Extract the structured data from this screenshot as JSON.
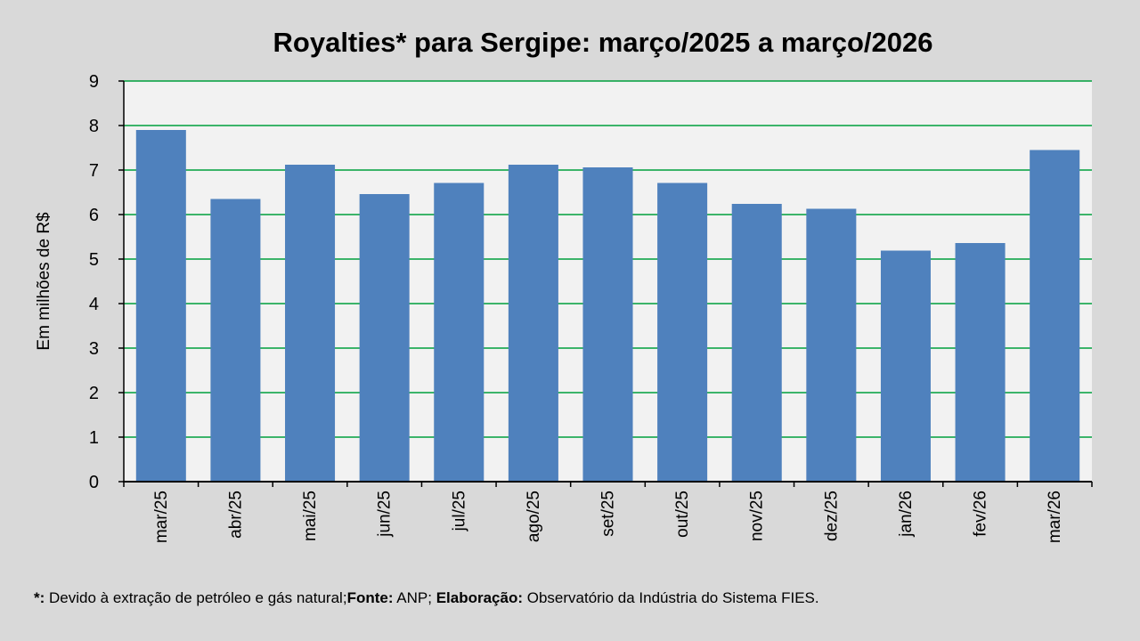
{
  "chart_data": {
    "type": "bar",
    "title": "Royalties* para Sergipe: março/2025 a março/2026",
    "ylabel": "Em milhões de R$",
    "xlabel": "",
    "categories": [
      "mar/25",
      "abr/25",
      "mai/25",
      "jun/25",
      "jul/25",
      "ago/25",
      "set/25",
      "out/25",
      "nov/25",
      "dez/25",
      "jan/26",
      "fev/26",
      "mar/26"
    ],
    "values": [
      7.9,
      6.35,
      7.12,
      6.46,
      6.71,
      7.12,
      7.06,
      6.71,
      6.24,
      6.13,
      5.19,
      5.36,
      7.45
    ],
    "ylim": [
      0,
      9
    ],
    "yticks": [
      0,
      1,
      2,
      3,
      4,
      5,
      6,
      7,
      8,
      9
    ],
    "grid": true,
    "legend": "none",
    "colors": {
      "bar": "#4f81bd",
      "grid": "#00a03c",
      "plot_background": "#f2f2f2",
      "page_background": "#d9d9d9"
    }
  },
  "footnote": {
    "asterisk_label": "*:",
    "asterisk_text": " Devido à extração de petróleo e gás natural;",
    "source_label": "Fonte:",
    "source_text": " ANP; ",
    "elaboration_label": "Elaboração:",
    "elaboration_text": " Observatório da Indústria do Sistema FIES."
  }
}
